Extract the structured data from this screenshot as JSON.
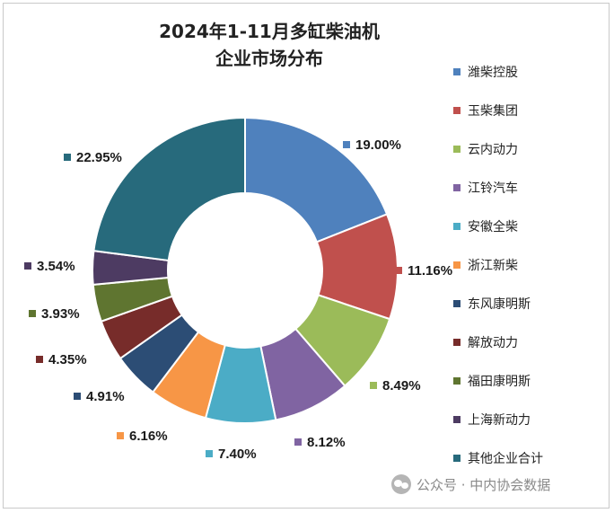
{
  "chart_data": {
    "type": "donut",
    "title_line1": "2024年1-11月多缸柴油机",
    "title_line2": "企业市场分布",
    "categories": [
      "潍柴控股",
      "玉柴集团",
      "云内动力",
      "江铃汽车",
      "安徽全柴",
      "浙江新柴",
      "东风康明斯",
      "解放动力",
      "福田康明斯",
      "上海新动力",
      "其他企业合计"
    ],
    "values": [
      19.0,
      11.16,
      8.49,
      8.12,
      7.4,
      6.16,
      4.91,
      4.35,
      3.93,
      3.54,
      22.95
    ],
    "value_labels": [
      "19.00%",
      "11.16%",
      "8.49%",
      "8.12%",
      "7.40%",
      "6.16%",
      "4.91%",
      "4.35%",
      "3.93%",
      "3.54%",
      "22.95%"
    ],
    "colors": [
      "#4f81bd",
      "#c0504d",
      "#9bbb59",
      "#8064a2",
      "#4bacc6",
      "#f79646",
      "#2c4d75",
      "#772c2a",
      "#5f7530",
      "#4d3b62",
      "#276a7c"
    ],
    "legend_position": "right"
  },
  "watermark": "公众号 · 中内协会数据"
}
